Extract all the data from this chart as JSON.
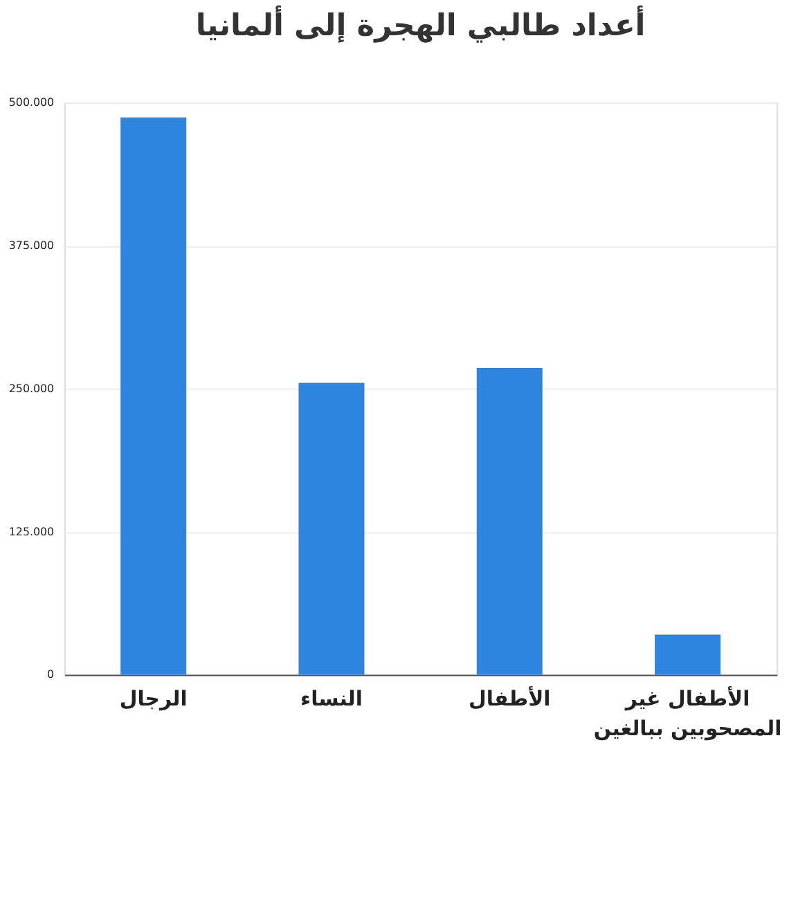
{
  "chart_data": {
    "type": "bar",
    "title": "أعداد طالبي الهجرة إلى ألمانيا",
    "categories": [
      "الرجال",
      "النساء",
      "الأطفال",
      "الأطفال غير المصحوبين ببالغين"
    ],
    "values": [
      487000,
      255000,
      268000,
      35000
    ],
    "color": "#2e85df",
    "ylim": [
      0,
      500000
    ],
    "yticks": [
      {
        "value": 0,
        "label": "0"
      },
      {
        "value": 125000,
        "label": "125.000"
      },
      {
        "value": 250000,
        "label": "250.000"
      },
      {
        "value": 375000,
        "label": "375.000"
      },
      {
        "value": 500000,
        "label": "500.000"
      }
    ],
    "grid": "y"
  }
}
